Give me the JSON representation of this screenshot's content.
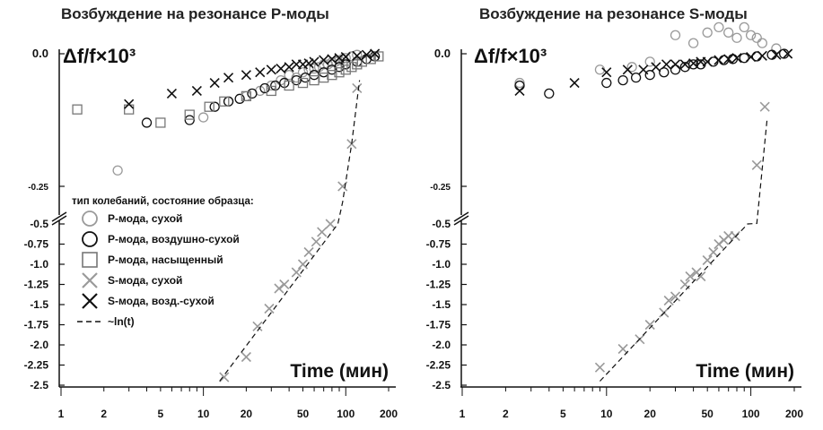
{
  "chart_data": [
    {
      "type": "scatter",
      "title": "Возбуждение на резонансе P-моды",
      "ylabel": "Δf/f×10³",
      "xlabel": "Time (мин)",
      "x_scale": "log",
      "xlim": [
        1,
        200
      ],
      "x_ticks": [
        "1",
        "2",
        "5",
        "10",
        "20",
        "50",
        "100",
        "200"
      ],
      "y_ticks_upper": [
        "0.0",
        "-0.25"
      ],
      "y_ticks_lower": [
        "-0.5",
        "-0.75",
        "-1.0",
        "-1.25",
        "-1.5",
        "-1.75",
        "-2.0",
        "-2.25",
        "-2.5"
      ],
      "y_axis_break": true,
      "legend": {
        "title": "тип колебаний, состояние образца:",
        "entries": [
          {
            "label": "P-мода, сухой",
            "marker": "circle",
            "color": "#9a9a9a"
          },
          {
            "label": "P-мода, воздушно-сухой",
            "marker": "circle",
            "color": "#111111"
          },
          {
            "label": "P-мода, насыщенный",
            "marker": "square",
            "color": "#777777"
          },
          {
            "label": "S-мода, сухой",
            "marker": "x",
            "color": "#9a9a9a"
          },
          {
            "label": "S-мода, возд.-сухой",
            "marker": "x",
            "color": "#111111"
          },
          {
            "label": "~ln(t)",
            "marker": "dashed-line",
            "color": "#111111"
          }
        ]
      },
      "series": [
        {
          "name": "P-мода, сухой",
          "marker": "circle",
          "color": "#9a9a9a",
          "points": [
            [
              2.5,
              -0.22
            ],
            [
              10,
              -0.12
            ],
            [
              15,
              -0.09
            ],
            [
              20,
              -0.08
            ],
            [
              25,
              -0.07
            ],
            [
              30,
              -0.06
            ],
            [
              35,
              -0.05
            ],
            [
              40,
              -0.04
            ],
            [
              45,
              -0.045
            ],
            [
              50,
              -0.035
            ],
            [
              55,
              -0.03
            ],
            [
              60,
              -0.028
            ],
            [
              65,
              -0.025
            ],
            [
              70,
              -0.02
            ],
            [
              75,
              -0.02
            ],
            [
              80,
              -0.016
            ],
            [
              85,
              -0.015
            ],
            [
              90,
              -0.012
            ],
            [
              95,
              -0.01
            ],
            [
              100,
              -0.008
            ],
            [
              110,
              -0.005
            ],
            [
              120,
              -0.002
            ]
          ]
        },
        {
          "name": "P-мода, воздушно-сухой",
          "marker": "circle",
          "color": "#111111",
          "points": [
            [
              4,
              -0.13
            ],
            [
              8,
              -0.125
            ],
            [
              12,
              -0.1
            ],
            [
              15,
              -0.09
            ],
            [
              18,
              -0.085
            ],
            [
              22,
              -0.075
            ],
            [
              27,
              -0.065
            ],
            [
              32,
              -0.06
            ],
            [
              37,
              -0.055
            ],
            [
              45,
              -0.05
            ],
            [
              52,
              -0.045
            ],
            [
              60,
              -0.04
            ],
            [
              70,
              -0.035
            ],
            [
              80,
              -0.03
            ],
            [
              90,
              -0.025
            ],
            [
              100,
              -0.02
            ],
            [
              120,
              -0.015
            ],
            [
              140,
              -0.01
            ],
            [
              160,
              -0.005
            ]
          ]
        },
        {
          "name": "P-мода, насыщенный",
          "marker": "square",
          "color": "#777777",
          "points": [
            [
              1.3,
              -0.105
            ],
            [
              3,
              -0.105
            ],
            [
              5,
              -0.13
            ],
            [
              8,
              -0.115
            ],
            [
              11,
              -0.1
            ],
            [
              14,
              -0.09
            ],
            [
              20,
              -0.08
            ],
            [
              30,
              -0.07
            ],
            [
              40,
              -0.06
            ],
            [
              50,
              -0.055
            ],
            [
              60,
              -0.05
            ],
            [
              70,
              -0.045
            ],
            [
              80,
              -0.04
            ],
            [
              90,
              -0.035
            ],
            [
              100,
              -0.03
            ],
            [
              110,
              -0.025
            ],
            [
              120,
              -0.02
            ],
            [
              130,
              -0.015
            ],
            [
              150,
              -0.01
            ],
            [
              170,
              -0.005
            ]
          ]
        },
        {
          "name": "S-мода, возд.-сухой",
          "marker": "x",
          "color": "#111111",
          "points": [
            [
              3,
              -0.095
            ],
            [
              6,
              -0.075
            ],
            [
              9,
              -0.07
            ],
            [
              12,
              -0.055
            ],
            [
              15,
              -0.045
            ],
            [
              20,
              -0.04
            ],
            [
              25,
              -0.035
            ],
            [
              30,
              -0.03
            ],
            [
              35,
              -0.028
            ],
            [
              40,
              -0.025
            ],
            [
              45,
              -0.02
            ],
            [
              50,
              -0.02
            ],
            [
              55,
              -0.018
            ],
            [
              60,
              -0.015
            ],
            [
              70,
              -0.012
            ],
            [
              80,
              -0.01
            ],
            [
              90,
              -0.008
            ],
            [
              100,
              -0.006
            ],
            [
              120,
              -0.004
            ],
            [
              140,
              -0.002
            ],
            [
              160,
              0
            ]
          ]
        }
      ],
      "series_lower": [
        {
          "name": "S-мода, сухой",
          "marker": "x",
          "color": "#9a9a9a",
          "points_upper": [
            [
              95,
              -0.25
            ],
            [
              110,
              -0.17
            ],
            [
              120,
              -0.065
            ]
          ],
          "points": [
            [
              14,
              -2.4
            ],
            [
              20,
              -2.15
            ],
            [
              24,
              -1.77
            ],
            [
              29,
              -1.55
            ],
            [
              34,
              -1.3
            ],
            [
              37,
              -1.25
            ],
            [
              45,
              -1.1
            ],
            [
              50,
              -1.0
            ],
            [
              55,
              -0.85
            ],
            [
              62,
              -0.72
            ],
            [
              68,
              -0.6
            ],
            [
              78,
              -0.5
            ]
          ]
        }
      ],
      "fit_line": {
        "label": "~ln(t)",
        "points_lower": [
          [
            13,
            -2.45
          ],
          [
            88,
            -0.5
          ]
        ],
        "points_upper": [
          [
            95,
            -0.28
          ],
          [
            110,
            -0.17
          ],
          [
            125,
            -0.05
          ]
        ]
      }
    },
    {
      "type": "scatter",
      "title": "Возбуждение на резонансе S-моды",
      "ylabel": "Δf/f×10³",
      "xlabel": "Time (мин)",
      "x_scale": "log",
      "xlim": [
        1,
        200
      ],
      "x_ticks": [
        "1",
        "2",
        "5",
        "10",
        "20",
        "50",
        "100",
        "200"
      ],
      "y_ticks_upper": [
        "0.0",
        "-0.25"
      ],
      "y_ticks_lower": [
        "-0.5",
        "-0.75",
        "-1.0",
        "-1.25",
        "-1.5",
        "-1.75",
        "-2.0",
        "-2.25",
        "-2.5"
      ],
      "y_axis_break": true,
      "series": [
        {
          "name": "P-мода, сухой",
          "marker": "circle",
          "color": "#9a9a9a",
          "points": [
            [
              2.5,
              -0.055
            ],
            [
              9,
              -0.03
            ],
            [
              15,
              -0.025
            ],
            [
              20,
              -0.015
            ],
            [
              30,
              0.035
            ],
            [
              40,
              0.02
            ],
            [
              50,
              0.04
            ],
            [
              60,
              0.05
            ],
            [
              70,
              0.04
            ],
            [
              80,
              0.03
            ],
            [
              90,
              0.05
            ],
            [
              100,
              0.035
            ],
            [
              110,
              0.03
            ],
            [
              120,
              0.02
            ],
            [
              150,
              0.01
            ]
          ]
        },
        {
          "name": "P-мода, воздушно-сухой",
          "marker": "circle",
          "color": "#111111",
          "points": [
            [
              2.5,
              -0.06
            ],
            [
              4,
              -0.075
            ],
            [
              10,
              -0.055
            ],
            [
              13,
              -0.05
            ],
            [
              16,
              -0.045
            ],
            [
              20,
              -0.04
            ],
            [
              25,
              -0.035
            ],
            [
              30,
              -0.03
            ],
            [
              35,
              -0.025
            ],
            [
              40,
              -0.02
            ],
            [
              45,
              -0.02
            ],
            [
              55,
              -0.015
            ],
            [
              65,
              -0.012
            ],
            [
              75,
              -0.01
            ],
            [
              90,
              -0.008
            ],
            [
              110,
              -0.005
            ],
            [
              140,
              -0.002
            ],
            [
              170,
              0
            ]
          ]
        },
        {
          "name": "S-мода, возд.-сухой",
          "marker": "x",
          "color": "#111111",
          "points": [
            [
              2.5,
              -0.07
            ],
            [
              6,
              -0.055
            ],
            [
              10,
              -0.035
            ],
            [
              14,
              -0.03
            ],
            [
              18,
              -0.03
            ],
            [
              22,
              -0.025
            ],
            [
              26,
              -0.02
            ],
            [
              30,
              -0.02
            ],
            [
              35,
              -0.02
            ],
            [
              40,
              -0.018
            ],
            [
              45,
              -0.015
            ],
            [
              50,
              -0.015
            ],
            [
              60,
              -0.012
            ],
            [
              70,
              -0.01
            ],
            [
              80,
              -0.008
            ],
            [
              100,
              -0.006
            ],
            [
              120,
              -0.004
            ],
            [
              150,
              -0.002
            ],
            [
              180,
              0
            ]
          ]
        }
      ],
      "series_lower": [
        {
          "name": "S-мода, сухой",
          "marker": "x",
          "color": "#9a9a9a",
          "points_upper": [
            [
              110,
              -0.21
            ],
            [
              125,
              -0.1
            ]
          ],
          "points": [
            [
              9,
              -2.28
            ],
            [
              13,
              -2.05
            ],
            [
              17,
              -1.93
            ],
            [
              20,
              -1.75
            ],
            [
              25,
              -1.6
            ],
            [
              27,
              -1.45
            ],
            [
              30,
              -1.4
            ],
            [
              35,
              -1.25
            ],
            [
              38,
              -1.15
            ],
            [
              42,
              -1.1
            ],
            [
              45,
              -1.15
            ],
            [
              50,
              -0.95
            ],
            [
              55,
              -0.85
            ],
            [
              60,
              -0.75
            ],
            [
              65,
              -0.7
            ],
            [
              70,
              -0.65
            ],
            [
              78,
              -0.65
            ]
          ]
        }
      ],
      "fit_line": {
        "label": "~ln(t)",
        "points_lower": [
          [
            9,
            -2.45
          ],
          [
            95,
            -0.5
          ]
        ],
        "points_upper": [
          [
            110,
            -0.32
          ],
          [
            130,
            -0.12
          ]
        ]
      }
    }
  ]
}
